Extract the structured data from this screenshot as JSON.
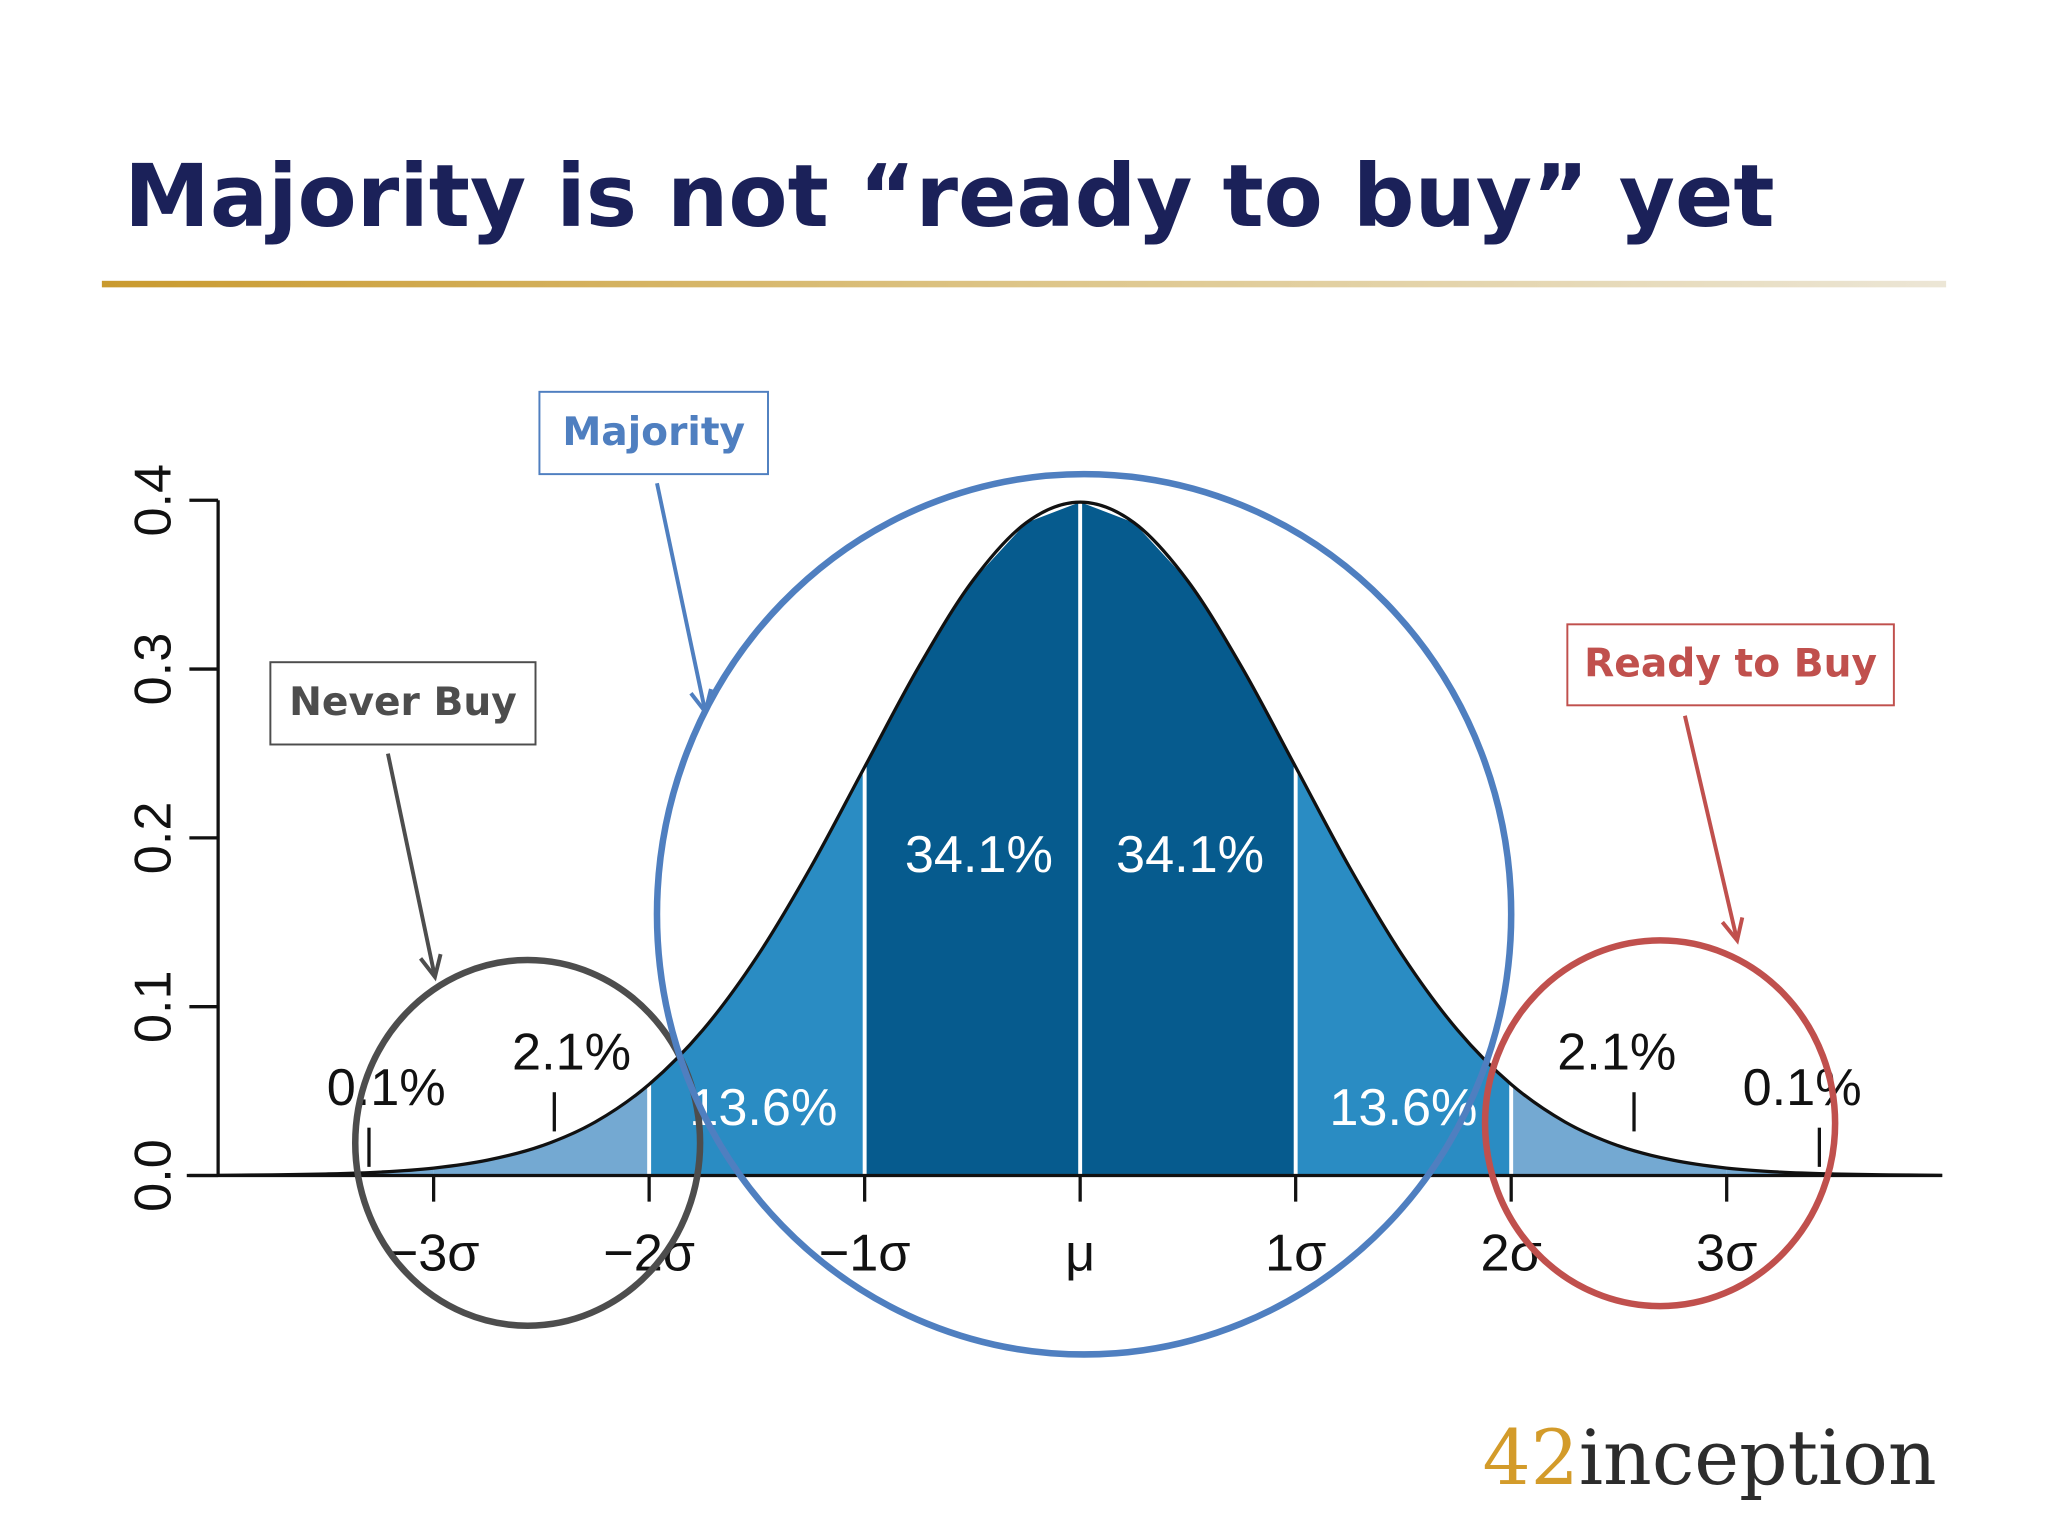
{
  "title": "Majority is not “ready to buy” yet",
  "logo": {
    "prefix": "42",
    "name": "inception"
  },
  "chart_data": {
    "type": "normal-area",
    "x": [
      -4,
      -3.75,
      -3.5,
      -3.25,
      -3,
      -2.75,
      -2.5,
      -2.25,
      -2,
      -1.75,
      -1.5,
      -1.25,
      -1,
      -0.75,
      -0.5,
      -0.25,
      0,
      0.25,
      0.5,
      0.75,
      1,
      1.25,
      1.5,
      1.75,
      2,
      2.25,
      2.5,
      2.75,
      3,
      3.25,
      3.5,
      3.75,
      4
    ],
    "values": [
      0.0001,
      0.0004,
      0.0009,
      0.002,
      0.0044,
      0.0091,
      0.0175,
      0.0317,
      0.054,
      0.0863,
      0.1295,
      0.1826,
      0.242,
      0.3011,
      0.3521,
      0.3867,
      0.3989,
      0.3867,
      0.3521,
      0.3011,
      0.242,
      0.1826,
      0.1295,
      0.0863,
      0.054,
      0.0317,
      0.0175,
      0.0091,
      0.0044,
      0.002,
      0.0009,
      0.0004,
      0.0001
    ],
    "segments": {
      "edges": [
        -4,
        -3,
        -2,
        -1,
        0,
        1,
        2,
        3,
        4
      ],
      "values": [
        0.1,
        2.1,
        13.6,
        34.1,
        34.1,
        13.6,
        2.1,
        0.1
      ],
      "value_labels": [
        "0.1%",
        "2.1%",
        "13.6%",
        "34.1%",
        "34.1%",
        "13.6%",
        "2.1%",
        "0.1%"
      ],
      "colors": [
        "#74a9d2",
        "#74a9d2",
        "#2a8cc3",
        "#065b8e",
        "#065b8e",
        "#2a8cc3",
        "#74a9d2",
        "#74a9d2"
      ]
    },
    "xlim": [
      -4,
      4
    ],
    "xticks": [
      {
        "value": -3,
        "label": "−3σ"
      },
      {
        "value": -2,
        "label": "−2σ"
      },
      {
        "value": -1,
        "label": "−1σ"
      },
      {
        "value": 0,
        "label": "μ"
      },
      {
        "value": 1,
        "label": "1σ"
      },
      {
        "value": 2,
        "label": "2σ"
      },
      {
        "value": 3,
        "label": "3σ"
      }
    ],
    "ylim": [
      0,
      0.4
    ],
    "yticks": [
      {
        "value": 0,
        "label": "0.0"
      },
      0.1,
      0.2,
      0.3,
      0.4
    ],
    "annotations": [
      {
        "text": "Never Buy",
        "color": "#4d4d4d"
      },
      {
        "text": "Majority",
        "color": "#4f7fc0"
      },
      {
        "text": "Ready to Buy",
        "color": "#c0504d"
      }
    ]
  }
}
